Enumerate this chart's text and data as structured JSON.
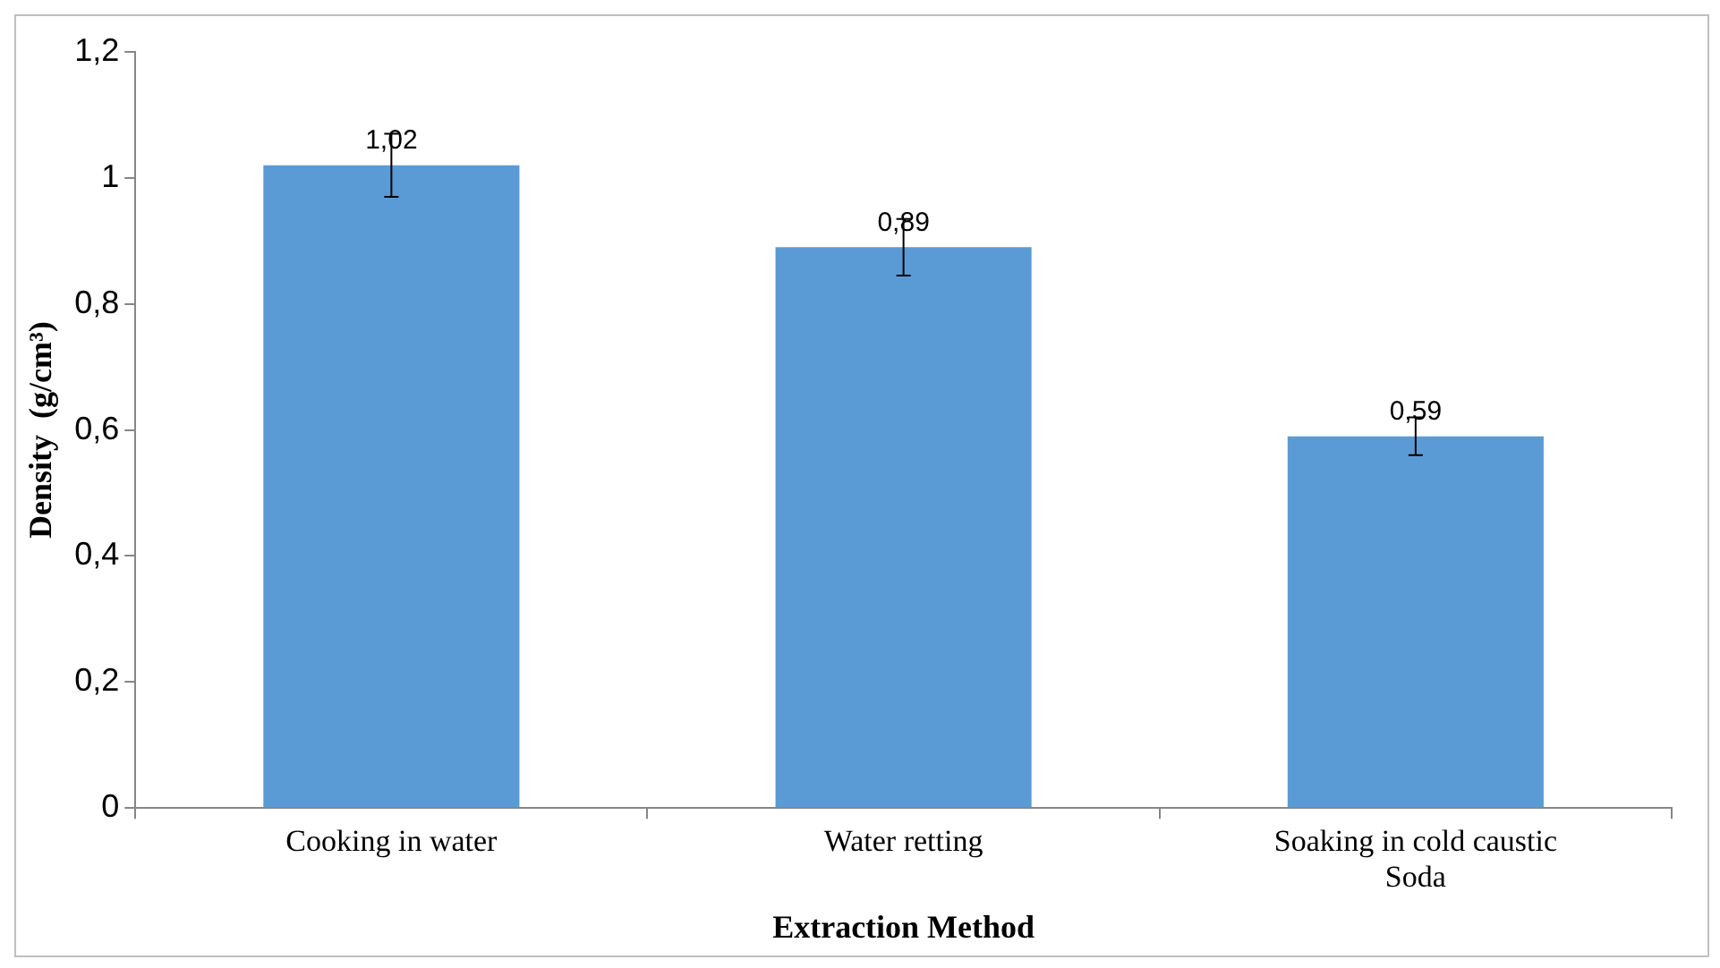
{
  "chart_data": {
    "type": "bar",
    "xlabel": "Extraction Method",
    "ylabel": "Density  (g/cm³)",
    "categories": [
      "Cooking in water",
      "Water retting",
      "Soaking in cold caustic Soda"
    ],
    "values": [
      1.02,
      0.89,
      0.59
    ],
    "color": "#5b9bd5",
    "errors": [
      0.05,
      0.045,
      0.03
    ],
    "value_labels": [
      "1,02",
      "0,89",
      "0,59"
    ],
    "ylim": [
      0,
      1.2
    ],
    "yticks": [
      {
        "value": 0,
        "label": "0"
      },
      {
        "value": 0.2,
        "label": "0,2"
      },
      {
        "value": 0.4,
        "label": "0,4"
      },
      {
        "value": 0.6,
        "label": "0,6"
      },
      {
        "value": 0.8,
        "label": "0,8"
      },
      {
        "value": 1,
        "label": "1"
      },
      {
        "value": 1.2,
        "label": "1,2"
      }
    ],
    "grid": false,
    "legend": false
  }
}
